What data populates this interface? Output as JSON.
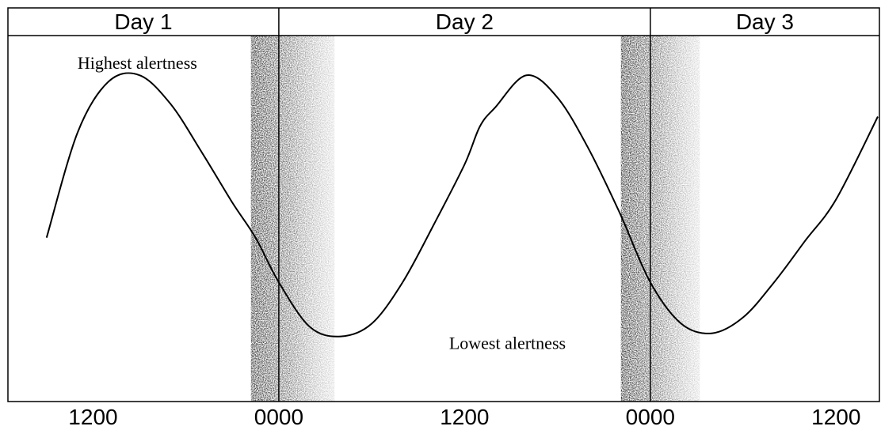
{
  "chart_data": {
    "type": "line",
    "title": "",
    "xlabel": "",
    "ylabel": "",
    "day_labels": [
      "Day 1",
      "Day 2",
      "Day 3"
    ],
    "x_ticks": [
      "1200",
      "0000",
      "1200",
      "0000",
      "1200"
    ],
    "tick_hours": [
      12,
      24,
      36,
      48,
      60
    ],
    "day_boundaries_hours": [
      24,
      48
    ],
    "xlim": [
      6.5,
      62.8
    ],
    "ylim": [
      0,
      1
    ],
    "sleep_periods_hours": [
      [
        22.2,
        27.6
      ],
      [
        46.1,
        51.2
      ]
    ],
    "annotations": [
      {
        "text": "Highest alertness",
        "x": 11,
        "y": 0.97
      },
      {
        "text": "Lowest alertness",
        "x": 35,
        "y": 0.09
      }
    ],
    "series": [
      {
        "name": "",
        "x": [
          9,
          11,
          13,
          15,
          17,
          19,
          21,
          22.5,
          24,
          26,
          28,
          30,
          32,
          34,
          36,
          37,
          38,
          40,
          42,
          44,
          46,
          48,
          50,
          52,
          54,
          56,
          58,
          60,
          62.7
        ],
        "y": [
          0.44,
          0.77,
          0.93,
          0.95,
          0.86,
          0.71,
          0.55,
          0.44,
          0.3,
          0.16,
          0.13,
          0.17,
          0.3,
          0.48,
          0.67,
          0.79,
          0.85,
          0.95,
          0.88,
          0.72,
          0.52,
          0.3,
          0.17,
          0.14,
          0.19,
          0.3,
          0.43,
          0.56,
          0.82
        ]
      }
    ]
  }
}
